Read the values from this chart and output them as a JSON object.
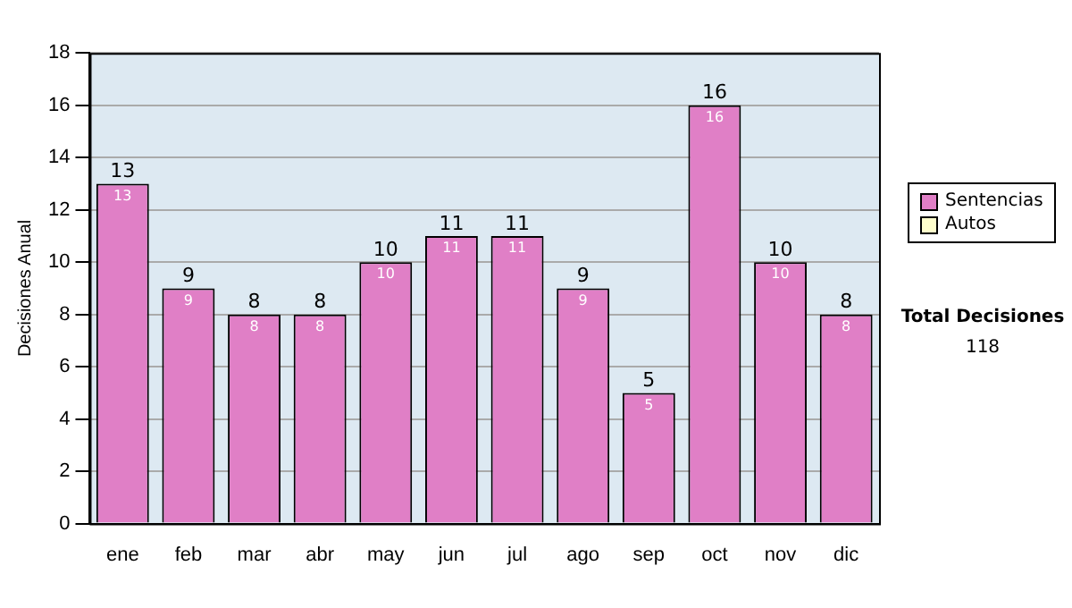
{
  "chart_data": {
    "type": "bar",
    "ylabel": "Decisiones Anual",
    "categories": [
      "ene",
      "feb",
      "mar",
      "abr",
      "may",
      "jun",
      "jul",
      "ago",
      "sep",
      "oct",
      "nov",
      "dic"
    ],
    "series": [
      {
        "name": "Sentencias",
        "color": "#e07fc6",
        "values": [
          13,
          9,
          8,
          8,
          10,
          11,
          11,
          9,
          5,
          16,
          10,
          8
        ]
      },
      {
        "name": "Autos",
        "color": "#ffffcc",
        "values": [
          null,
          null,
          null,
          null,
          null,
          null,
          null,
          null,
          null,
          null,
          null,
          null
        ]
      }
    ],
    "ylim": [
      0,
      18
    ],
    "yticks": [
      0,
      2,
      4,
      6,
      8,
      10,
      12,
      14,
      16,
      18
    ],
    "grid": "y",
    "legend": "right",
    "data_labels": true,
    "totals": [
      "13",
      "9",
      "8",
      "8",
      "10",
      "11",
      "11",
      "9",
      "5",
      "16",
      "10",
      "8"
    ],
    "annotations": [
      "Total Decisiones",
      "118"
    ]
  }
}
